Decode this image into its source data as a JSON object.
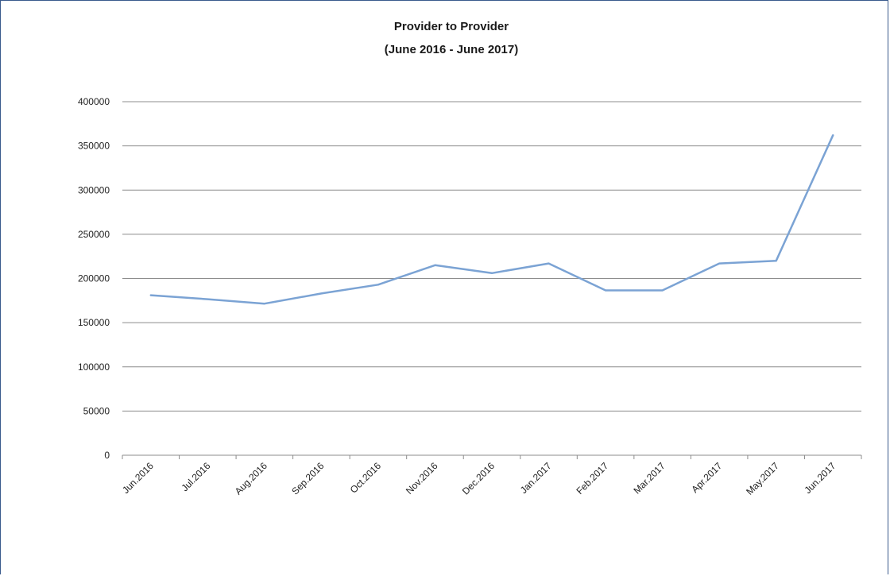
{
  "chart_data": {
    "type": "line",
    "title": "Provider to Provider",
    "subtitle": "(June 2016 - June 2017)",
    "xlabel": "",
    "ylabel": "",
    "categories": [
      "Jun.2016",
      "Jul.2016",
      "Aug.2016",
      "Sep.2016",
      "Oct.2016",
      "Nov.2016",
      "Dec.2016",
      "Jan.2017",
      "Feb.2017",
      "Mar.2017",
      "Apr.2017",
      "May.2017",
      "Jun.2017"
    ],
    "series": [
      {
        "values": [
          181000,
          176500,
          171500,
          183000,
          193000,
          215000,
          206000,
          217000,
          186500,
          186500,
          217000,
          220000,
          362000
        ],
        "color": "#7ba3d4"
      }
    ],
    "ylim": [
      0,
      400000
    ],
    "yticks": [
      "0",
      "50000",
      "100000",
      "150000",
      "200000",
      "250000",
      "300000",
      "350000",
      "400000"
    ],
    "grid": true,
    "legend": "none",
    "colors": {
      "line": "#7ba3d4",
      "grid": "#8c8c8c",
      "border": "#3a5a8c"
    }
  }
}
